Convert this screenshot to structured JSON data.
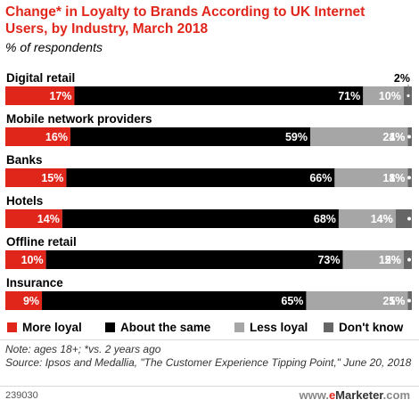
{
  "header": {
    "title": "Change* in Loyalty to Brands According to UK Internet Users, by Industry, March 2018",
    "subtitle": "% of respondents"
  },
  "colors": {
    "more_loyal": "#e0261b",
    "about_the_same": "#000000",
    "less_loyal": "#a6a6a6",
    "dont_know": "#666666"
  },
  "chart_data": {
    "type": "bar",
    "orientation": "horizontal",
    "stacked": true,
    "title": "Change* in Loyalty to Brands According to UK Internet Users, by Industry, March 2018",
    "subtitle": "% of respondents",
    "categories": [
      "Digital retail",
      "Mobile network providers",
      "Banks",
      "Hotels",
      "Offline retail",
      "Insurance"
    ],
    "series": [
      {
        "name": "More loyal",
        "values": [
          17,
          16,
          15,
          14,
          10,
          9
        ]
      },
      {
        "name": "About the same",
        "values": [
          71,
          59,
          66,
          68,
          73,
          65
        ]
      },
      {
        "name": "Less loyal",
        "values": [
          10,
          24,
          18,
          14,
          15,
          25
        ]
      },
      {
        "name": "Don't know",
        "values": [
          2,
          1,
          1,
          4,
          2,
          1
        ]
      }
    ],
    "data_labels": [
      [
        "17%",
        "71%",
        "10%",
        "2%"
      ],
      [
        "16%",
        "59%",
        "24%",
        "1%"
      ],
      [
        "15%",
        "66%",
        "18%",
        "1%"
      ],
      [
        "14%",
        "68%",
        "14%",
        "4%"
      ],
      [
        "10%",
        "73%",
        "15%",
        "2%"
      ],
      [
        "9%",
        "65%",
        "25%",
        "1%"
      ]
    ],
    "xlim": [
      0,
      100
    ],
    "grid": false,
    "legend_position": "bottom"
  },
  "legend": {
    "more_loyal": "More loyal",
    "about_the_same": "About the same",
    "less_loyal": "Less loyal",
    "dont_know": "Don't know"
  },
  "footer": {
    "note": "Note: ages 18+; *vs. 2 years ago",
    "source": "Source: Ipsos and Medallia, \"The Customer Experience Tipping Point,\" June 20, 2018",
    "chart_id": "239030",
    "brand_www": "www.",
    "brand_e": "e",
    "brand_marketer": "Marketer",
    "brand_com": ".com"
  }
}
